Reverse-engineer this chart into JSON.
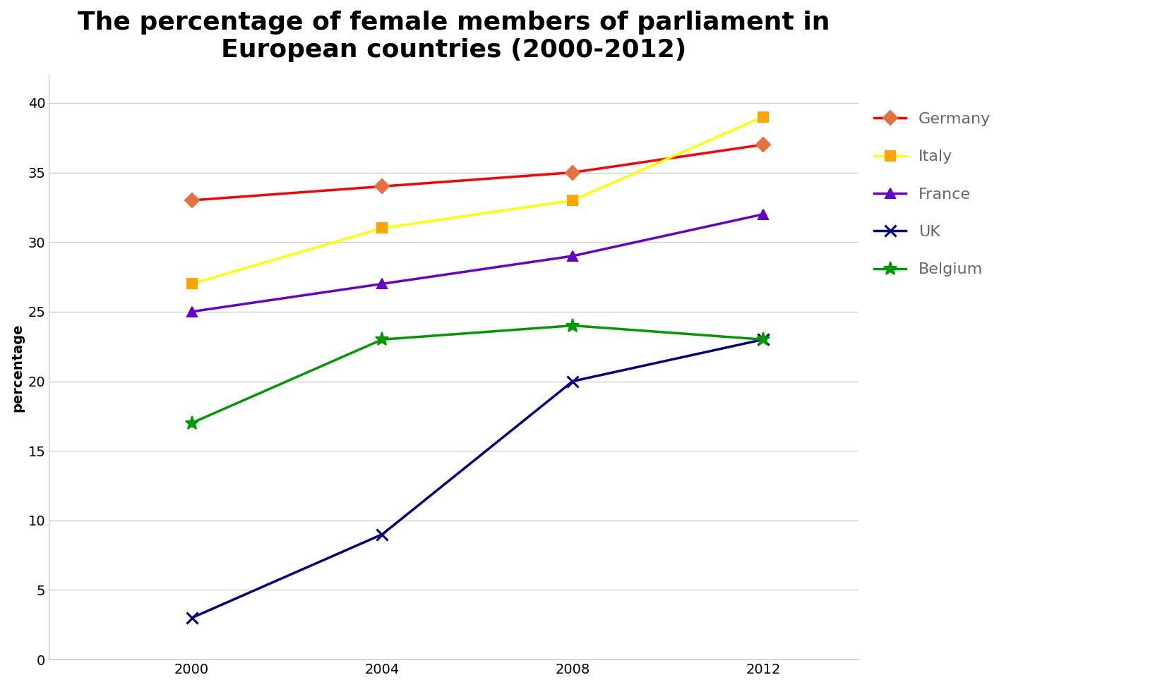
{
  "title": "The percentage of female members of parliament in\nEuropean countries (2000-2012)",
  "ylabel": "percentage",
  "years": [
    2000,
    2004,
    2008,
    2012
  ],
  "series": {
    "Germany": {
      "values": [
        33,
        34,
        35,
        37
      ],
      "line_color": "#FF0000",
      "marker_color": "#E87040",
      "marker": "D",
      "markersize": 10,
      "linewidth": 2.5
    },
    "Italy": {
      "values": [
        27,
        31,
        33,
        39
      ],
      "line_color": "#FFFF00",
      "marker_color": "#FFA500",
      "marker": "s",
      "markersize": 10,
      "linewidth": 2.5
    },
    "France": {
      "values": [
        25,
        27,
        29,
        32
      ],
      "line_color": "#6600CC",
      "marker_color": "#6600CC",
      "marker": "^",
      "markersize": 10,
      "linewidth": 2.5
    },
    "UK": {
      "values": [
        3,
        9,
        20,
        23
      ],
      "line_color": "#000080",
      "marker_color": "#000080",
      "marker": "x",
      "markersize": 11,
      "linewidth": 2.5
    },
    "Belgium": {
      "values": [
        17,
        23,
        24,
        23
      ],
      "line_color": "#009900",
      "marker_color": "#009900",
      "marker": "*",
      "markersize": 14,
      "linewidth": 2.5
    }
  },
  "ylim": [
    0,
    42
  ],
  "yticks": [
    0,
    5,
    10,
    15,
    20,
    25,
    30,
    35,
    40
  ],
  "xticks": [
    2000,
    2004,
    2008,
    2012
  ],
  "xlim": [
    1997,
    2014
  ],
  "background_color": "#ffffff",
  "plot_bg_color": "#ffffff",
  "title_fontsize": 26,
  "axis_label_fontsize": 14,
  "tick_fontsize": 14,
  "legend_fontsize": 16,
  "legend_text_color": "#666666"
}
